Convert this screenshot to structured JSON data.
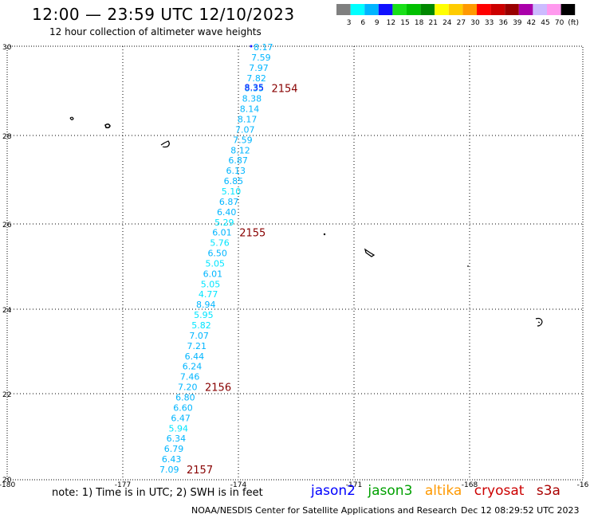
{
  "header": {
    "title": "12:00 — 23:59 UTC 12/10/2023",
    "subtitle": "12 hour collection of altimeter wave heights"
  },
  "color_scale": {
    "colors": [
      "#7f7f7f",
      "#00ffff",
      "#00b5ff",
      "#1010ff",
      "#18e018",
      "#00c000",
      "#008800",
      "#ffff00",
      "#ffcc00",
      "#ff9900",
      "#ff0000",
      "#cc0000",
      "#990000",
      "#aa00aa",
      "#ccbbff",
      "#ff99ee",
      "#000000"
    ],
    "labels": [
      "3",
      "6",
      "9",
      "12",
      "15",
      "18",
      "21",
      "24",
      "27",
      "30",
      "33",
      "36",
      "39",
      "42",
      "45",
      "70",
      "(ft)"
    ]
  },
  "map": {
    "lat_labels": [
      "30",
      "28",
      "26",
      "24",
      "22",
      "20"
    ],
    "lon_labels": [
      "-180",
      "-177",
      "-174",
      "-171",
      "-168",
      "-16"
    ],
    "points": [
      {
        "v": "8.17",
        "c": "#00b5ff"
      },
      {
        "v": "7.59",
        "c": "#00b5ff"
      },
      {
        "v": "7.97",
        "c": "#00b5ff"
      },
      {
        "v": "7.82",
        "c": "#00b5ff"
      },
      {
        "v": "8.35",
        "c": "#00b5ff"
      },
      {
        "v": "8.38",
        "c": "#00b5ff"
      },
      {
        "v": "8.14",
        "c": "#00b5ff"
      },
      {
        "v": "8.17",
        "c": "#00b5ff"
      },
      {
        "v": "7.07",
        "c": "#00b5ff"
      },
      {
        "v": "7.59",
        "c": "#00b5ff"
      },
      {
        "v": "8.12",
        "c": "#00b5ff"
      },
      {
        "v": "6.87",
        "c": "#00b5ff"
      },
      {
        "v": "6.13",
        "c": "#00b5ff"
      },
      {
        "v": "6.85",
        "c": "#00b5ff"
      },
      {
        "v": "5.10",
        "c": "#00e5ff"
      },
      {
        "v": "6.87",
        "c": "#00b5ff"
      },
      {
        "v": "6.40",
        "c": "#00b5ff"
      },
      {
        "v": "5.29",
        "c": "#00e5ff"
      },
      {
        "v": "6.01",
        "c": "#00b5ff"
      },
      {
        "v": "5.76",
        "c": "#00e5ff"
      },
      {
        "v": "6.50",
        "c": "#00b5ff"
      },
      {
        "v": "5.05",
        "c": "#00e5ff"
      },
      {
        "v": "6.01",
        "c": "#00b5ff"
      },
      {
        "v": "5.05",
        "c": "#00e5ff"
      },
      {
        "v": "4.77",
        "c": "#00e5ff"
      },
      {
        "v": "8.94",
        "c": "#00b5ff"
      },
      {
        "v": "5.95",
        "c": "#00e5ff"
      },
      {
        "v": "5.82",
        "c": "#00e5ff"
      },
      {
        "v": "7.07",
        "c": "#00b5ff"
      },
      {
        "v": "7.21",
        "c": "#00b5ff"
      },
      {
        "v": "6.44",
        "c": "#00b5ff"
      },
      {
        "v": "6.24",
        "c": "#00b5ff"
      },
      {
        "v": "7.46",
        "c": "#00b5ff"
      },
      {
        "v": "7.20",
        "c": "#00b5ff"
      },
      {
        "v": "6.80",
        "c": "#00b5ff"
      },
      {
        "v": "6.60",
        "c": "#00b5ff"
      },
      {
        "v": "6.47",
        "c": "#00b5ff"
      },
      {
        "v": "5.94",
        "c": "#00e5ff"
      },
      {
        "v": "6.34",
        "c": "#00b5ff"
      },
      {
        "v": "6.79",
        "c": "#00b5ff"
      },
      {
        "v": "6.43",
        "c": "#00b5ff"
      },
      {
        "v": "7.09",
        "c": "#00b5ff"
      }
    ],
    "overlap_label": {
      "v": "8.35",
      "c": "#1010ff"
    },
    "time_labels": [
      "2154",
      "2155",
      "2156",
      "2157"
    ],
    "time_color": "#880000"
  },
  "footer": {
    "note": "note: 1) Time is in UTC; 2) SWH is in feet",
    "missions": [
      {
        "name": "jason2",
        "color": "#0000ff"
      },
      {
        "name": "jason3",
        "color": "#00a000"
      },
      {
        "name": "altika",
        "color": "#ff9900"
      },
      {
        "name": "cryosat",
        "color": "#cc0000"
      },
      {
        "name": "s3a",
        "color": "#aa0000"
      }
    ],
    "credit": "NOAA/NESDIS Center for Satellite Applications and Research",
    "timestamp": "Dec 12 08:29:52 UTC 2023"
  }
}
